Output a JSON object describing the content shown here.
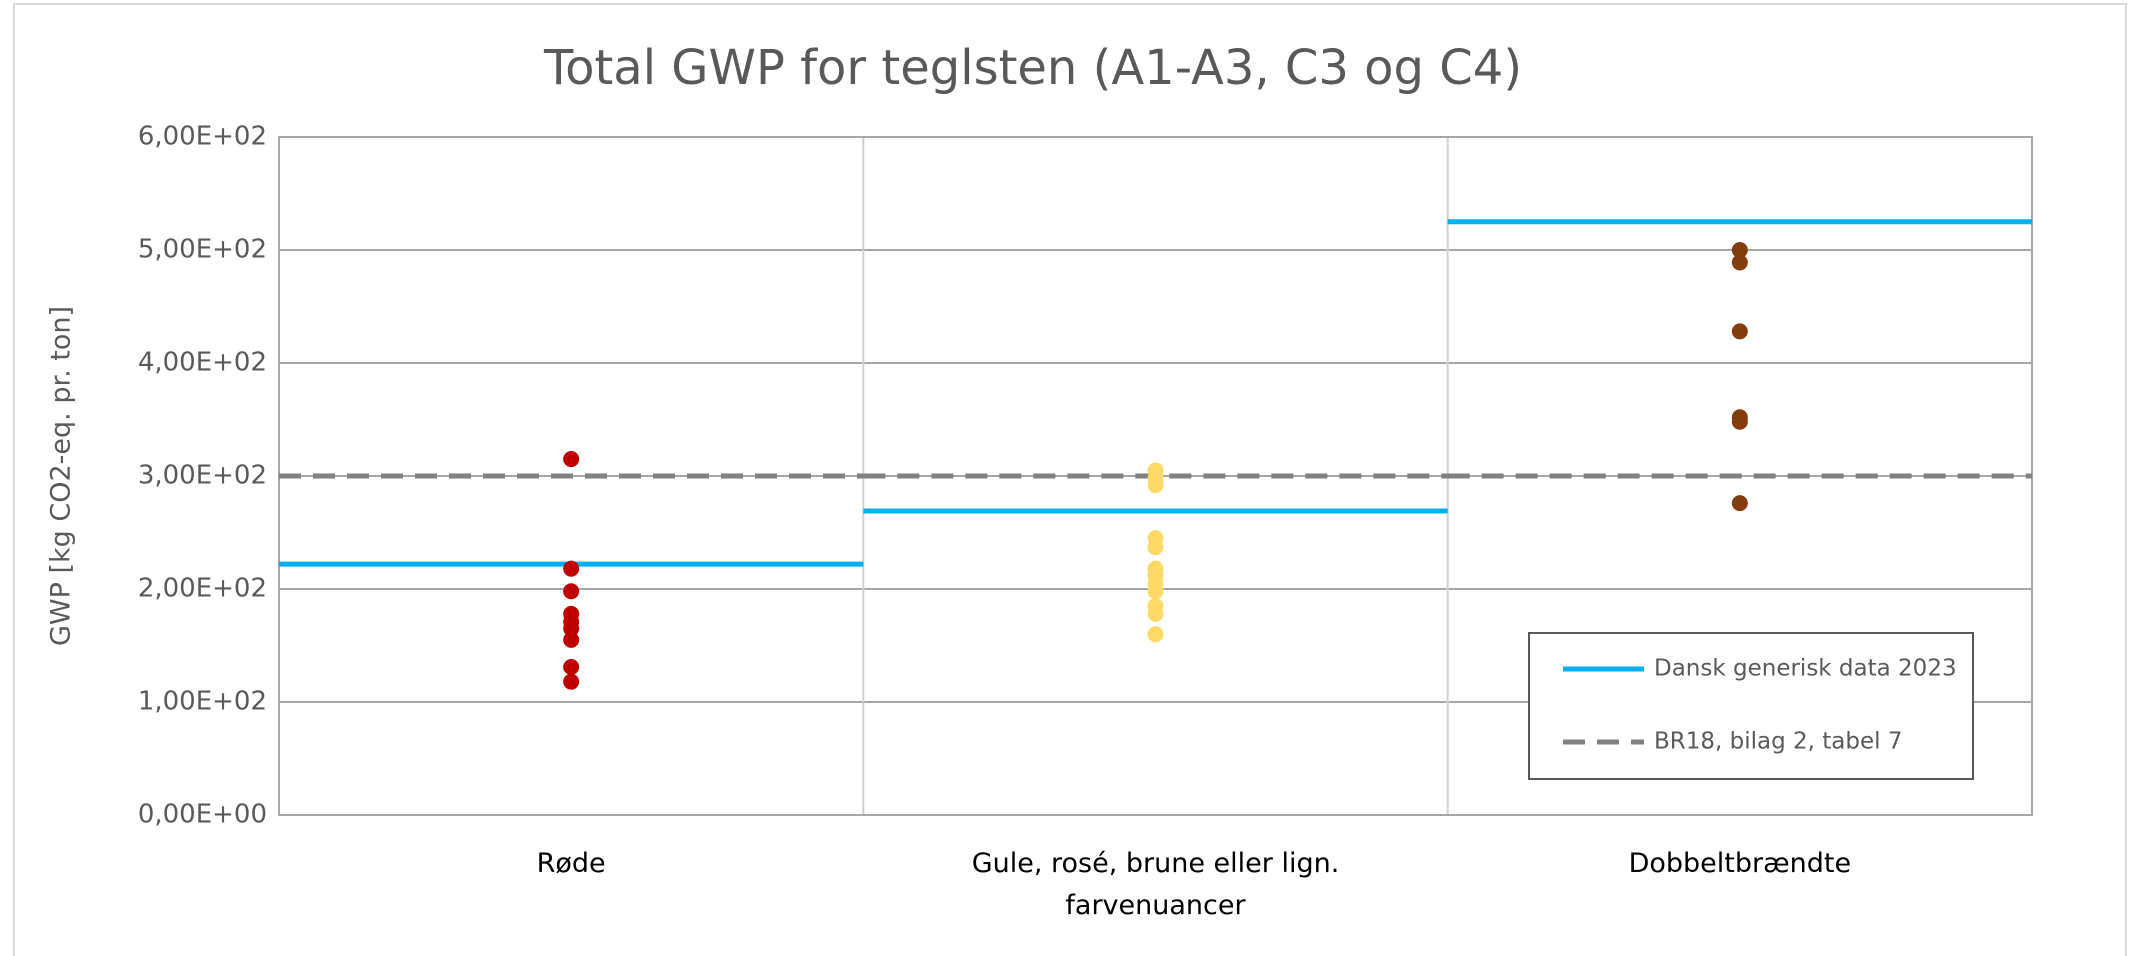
{
  "chart_data": {
    "type": "strip",
    "title": "Total GWP for teglsten (A1-A3, C3 og C4)",
    "y_label": "GWP [kg CO2-eq. pr. ton]",
    "categories": [
      "Røde",
      "Gule, rosé, brune eller lign. farvenuancer",
      "Dobbeltbrændte"
    ],
    "points": [
      [
        315,
        218,
        198,
        178,
        171,
        165,
        155,
        131,
        118
      ],
      [
        305,
        298,
        292,
        245,
        237,
        218,
        212,
        205,
        198,
        185,
        178,
        160
      ],
      [
        500,
        489,
        428,
        352,
        348,
        276
      ]
    ],
    "point_colors": [
      "#c00000",
      "#ffd966",
      "#843c0c"
    ],
    "series": [
      {
        "name": "Dansk generisk data 2023",
        "color": "#00b0f0",
        "dash": false,
        "values": [
          222,
          269,
          525
        ]
      },
      {
        "name": "BR18, bilag 2, tabel 7",
        "color": "#808080",
        "dash": true,
        "values": [
          300,
          300,
          300
        ]
      }
    ],
    "ylim": [
      0,
      600
    ],
    "yticks": [
      {
        "value": 0,
        "label": "0,00E+00"
      },
      {
        "value": 100,
        "label": "1,00E+02"
      },
      {
        "value": 200,
        "label": "2,00E+02"
      },
      {
        "value": 300,
        "label": "3,00E+02"
      },
      {
        "value": 400,
        "label": "4,00E+02"
      },
      {
        "value": 500,
        "label": "5,00E+02"
      },
      {
        "value": 600,
        "label": "6,00E+02"
      }
    ],
    "grid": true,
    "legend": "lower-right"
  }
}
